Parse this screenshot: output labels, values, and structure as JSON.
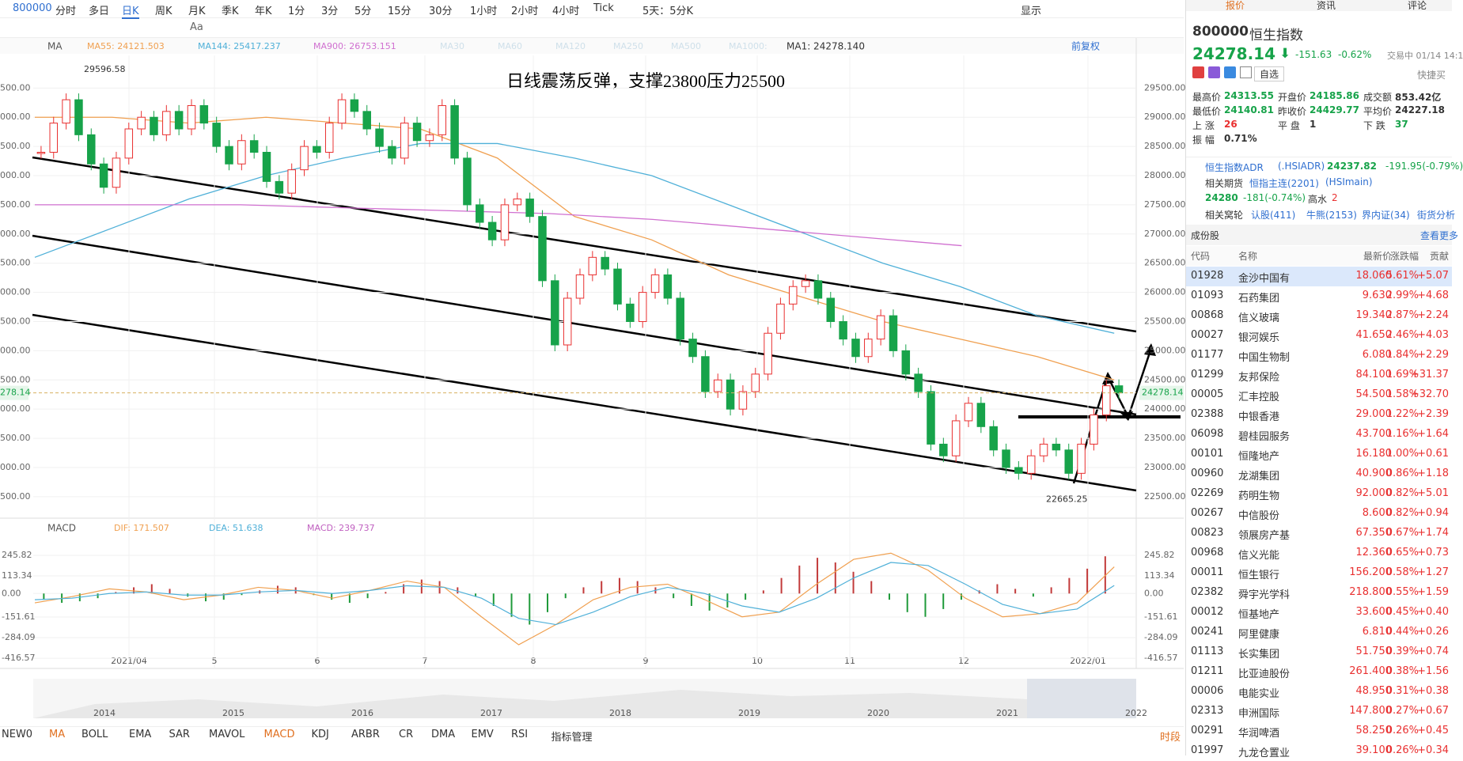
{
  "toolbar": {
    "code": "800000",
    "periods": [
      "分时",
      "多日",
      "日K",
      "周K",
      "月K",
      "季K",
      "年K",
      "1分",
      "3分",
      "5分",
      "15分",
      "30分",
      "1小时",
      "2小时",
      "4小时",
      "Tick",
      "5天：5分K"
    ],
    "active_index": 2,
    "display": "显示",
    "text_tool": "Aa"
  },
  "chart_data": [
    {
      "type": "candlestick",
      "indicator": "MA",
      "adjust": "前复权",
      "legend_extra": [
        "MA30",
        "MA60",
        "MA120",
        "MA250",
        "MA500",
        "MA1000:"
      ],
      "ma1": "MA1: 24278.140",
      "values": [
        28400,
        28900,
        29300,
        28700,
        28200,
        27800,
        28300,
        28800,
        29000,
        28700,
        29100,
        28800,
        29200,
        28900,
        28500,
        28200,
        28600,
        28400,
        27900,
        27700,
        28100,
        28500,
        28400,
        28900,
        29300,
        29100,
        28800,
        28500,
        28300,
        28900,
        28600,
        28700,
        29200,
        28300,
        27500,
        27200,
        26900,
        27500,
        27600,
        27300,
        26200,
        25100,
        25900,
        26300,
        26600,
        26400,
        25800,
        25500,
        26000,
        26300,
        25900,
        25200,
        24900,
        24300,
        24500,
        24000,
        24300,
        24600,
        25300,
        25800,
        26100,
        26200,
        25900,
        25500,
        25200,
        24900,
        25200,
        25600,
        25000,
        24600,
        24300,
        23400,
        23200,
        23800,
        24100,
        23700,
        23300,
        23000,
        22900,
        23200,
        23400,
        23300,
        22900,
        23400,
        23900,
        24400,
        24278.14
      ],
      "up_color": "#e93030",
      "down_color": "#17a34a",
      "series": [
        {
          "name": "MA55: 24121.503",
          "color": "#f0a050",
          "values": [
            29000,
            29000,
            28900,
            29000,
            28900,
            28800,
            28300,
            27300,
            26900,
            26300,
            25900,
            25500,
            25200,
            24900,
            24500
          ]
        },
        {
          "name": "MA144: 25417.237",
          "color": "#4fb0d8",
          "values": [
            26600,
            27100,
            27600,
            28000,
            28300,
            28550,
            28550,
            28300,
            28000,
            27500,
            27000,
            26500,
            26100,
            25600,
            25300
          ]
        },
        {
          "name": "MA900: 26753.151",
          "color": "#d070d0",
          "values": [
            27500,
            27500,
            27500,
            27450,
            27400,
            27350,
            27250,
            27100,
            26950,
            26800
          ]
        }
      ],
      "ylim": [
        22200,
        30060
      ],
      "yticks": [
        {
          "value": 22500,
          "label": "22500.00"
        },
        {
          "value": 23000,
          "label": "23000.00"
        },
        {
          "value": 23500,
          "label": "23500.00"
        },
        {
          "value": 24000,
          "label": "24000.00"
        },
        {
          "value": 24500,
          "label": "24500.00"
        },
        {
          "value": 25000,
          "label": "25000.00"
        },
        {
          "value": 25500,
          "label": "25500.00"
        },
        {
          "value": 26000,
          "label": "26000.00"
        },
        {
          "value": 26500,
          "label": "26500.00"
        },
        {
          "value": 27000,
          "label": "27000.00"
        },
        {
          "value": 27500,
          "label": "27500.00"
        },
        {
          "value": 28000,
          "label": "28000.00"
        },
        {
          "value": 28500,
          "label": "28500.00"
        },
        {
          "value": 29000,
          "label": "29000.00"
        },
        {
          "value": 29500,
          "label": "29500.00"
        }
      ],
      "current": 24278.14,
      "high": 29596.58,
      "low": 22665.25,
      "annotation": "日线震荡反弹，支撑23800压力25500",
      "x_labels": [
        "2021/04",
        "5",
        "6",
        "7",
        "8",
        "9",
        "10",
        "11",
        "12",
        "2022/01"
      ]
    },
    {
      "type": "bar",
      "indicator": "MACD",
      "legend": "MACD: 239.737",
      "legend_color": "#c060c0",
      "values": [
        -40,
        -60,
        -50,
        -30,
        10,
        40,
        60,
        30,
        -20,
        -50,
        -40,
        -10,
        20,
        50,
        40,
        -10,
        -40,
        -60,
        -30,
        10,
        60,
        90,
        80,
        40,
        -20,
        -80,
        -150,
        -200,
        -120,
        -30,
        40,
        80,
        100,
        80,
        40,
        -30,
        -80,
        -110,
        -90,
        -40,
        20,
        100,
        180,
        230,
        200,
        140,
        80,
        -40,
        -120,
        -150,
        -100,
        -40,
        20,
        60,
        30,
        -20,
        40,
        100,
        160,
        239.737
      ],
      "up_color": "#c23a3a",
      "down_color": "#1f9a3a",
      "series": [
        {
          "name": "DIF: 171.507",
          "color": "#f0a050",
          "values": [
            -60,
            -20,
            30,
            10,
            -40,
            -10,
            40,
            20,
            -30,
            20,
            80,
            40,
            -150,
            -330,
            -200,
            -40,
            40,
            60,
            -40,
            -150,
            -120,
            60,
            220,
            260,
            150,
            -30,
            -150,
            -130,
            -60,
            171.507
          ]
        },
        {
          "name": "DEA: 51.638",
          "color": "#4fb0d8",
          "values": [
            -40,
            -30,
            0,
            10,
            -10,
            -10,
            10,
            20,
            0,
            20,
            50,
            40,
            -30,
            -160,
            -200,
            -120,
            -20,
            40,
            0,
            -80,
            -120,
            -30,
            100,
            200,
            180,
            60,
            -70,
            -130,
            -100,
            51.638
          ]
        }
      ],
      "ylim": [
        -457,
        358
      ],
      "yticks": [
        245.82,
        113.34,
        {
          "value": 0,
          "label": "0.00"
        },
        -151.61,
        -284.09,
        -416.57
      ]
    }
  ],
  "overview_years": [
    "2014",
    "2015",
    "2016",
    "2017",
    "2018",
    "2019",
    "2020",
    "2021",
    "2022"
  ],
  "indicator_tabs": [
    "NEW0",
    "MA",
    "BOLL",
    "EMA",
    "SAR",
    "MAVOL",
    "MACD",
    "KDJ",
    "ARBR",
    "CR",
    "DMA",
    "EMV",
    "RSI",
    "指标管理"
  ],
  "indicator_active": [
    1,
    6
  ],
  "period_button": "时段",
  "panel": {
    "tabs": [
      "报价",
      "资讯",
      "评论"
    ],
    "code": "800000",
    "name": "恒生指数",
    "price": "24278.14",
    "change": "-151.63",
    "pct": "-0.62%",
    "status": "交易中 01/14 14:1",
    "watch": "自选",
    "quick": "快捷买",
    "stats": [
      [
        "最高价",
        "24313.55",
        "开盘价",
        "24185.86",
        "成交额",
        "853.42亿"
      ],
      [
        "最低价",
        "24140.81",
        "昨收价",
        "24429.77",
        "平均价",
        "24227.18"
      ],
      [
        "上  涨",
        "26",
        "平  盘",
        "1",
        "下  跌",
        "37"
      ],
      [
        "振  幅",
        "0.71%"
      ]
    ],
    "adr": {
      "name": "恒生指数ADR",
      "code": "(.HSIADR)",
      "price": "24237.82",
      "change": "-191.95(-0.79%)"
    },
    "futures": {
      "label": "相关期货",
      "name": "恒指主连(2201)",
      "code": "(HSImain)",
      "price": "24280",
      "change": "-181(-0.74%)",
      "premium_label": "高水",
      "premium": "2"
    },
    "warrants": {
      "label": "相关窝轮",
      "items": [
        "认股(411)",
        "牛熊(2153)",
        "界内证(34)",
        "街货分析"
      ]
    },
    "constituents": "成份股",
    "more": "查看更多",
    "columns": [
      "代码",
      "名称",
      "最新价",
      "涨跌幅",
      "贡献"
    ],
    "rows": [
      [
        "01928",
        "金沙中国有",
        "18.060",
        "5.61%",
        "+5.07"
      ],
      [
        "01093",
        "石药集团",
        "9.630",
        "2.99%",
        "+4.68"
      ],
      [
        "00868",
        "信义玻璃",
        "19.340",
        "2.87%",
        "+2.24"
      ],
      [
        "00027",
        "银河娱乐",
        "41.650",
        "2.46%",
        "+4.03"
      ],
      [
        "01177",
        "中国生物制",
        "6.080",
        "1.84%",
        "+2.29"
      ],
      [
        "01299",
        "友邦保险",
        "84.100",
        "1.69%",
        "+31.37"
      ],
      [
        "00005",
        "汇丰控股",
        "54.500",
        "1.58%",
        "+32.70"
      ],
      [
        "02388",
        "中银香港",
        "29.000",
        "1.22%",
        "+2.39"
      ],
      [
        "06098",
        "碧桂园服务",
        "43.700",
        "1.16%",
        "+1.64"
      ],
      [
        "00101",
        "恒隆地产",
        "16.180",
        "1.00%",
        "+0.61"
      ],
      [
        "00960",
        "龙湖集团",
        "40.900",
        "0.86%",
        "+1.18"
      ],
      [
        "02269",
        "药明生物",
        "92.000",
        "0.82%",
        "+5.01"
      ],
      [
        "00267",
        "中信股份",
        "8.600",
        "0.82%",
        "+0.94"
      ],
      [
        "00823",
        "领展房产基",
        "67.350",
        "0.67%",
        "+1.74"
      ],
      [
        "00968",
        "信义光能",
        "12.360",
        "0.65%",
        "+0.73"
      ],
      [
        "00011",
        "恒生银行",
        "156.200",
        "0.58%",
        "+1.27"
      ],
      [
        "02382",
        "舜宇光学科",
        "218.800",
        "0.55%",
        "+1.59"
      ],
      [
        "00012",
        "恒基地产",
        "33.600",
        "0.45%",
        "+0.40"
      ],
      [
        "00241",
        "阿里健康",
        "6.810",
        "0.44%",
        "+0.26"
      ],
      [
        "01113",
        "长实集团",
        "51.750",
        "0.39%",
        "+0.74"
      ],
      [
        "01211",
        "比亚迪股份",
        "261.400",
        "0.38%",
        "+1.56"
      ],
      [
        "00006",
        "电能实业",
        "48.950",
        "0.31%",
        "+0.38"
      ],
      [
        "02313",
        "申洲国际",
        "147.800",
        "0.27%",
        "+0.67"
      ],
      [
        "00291",
        "华润啤酒",
        "58.250",
        "0.26%",
        "+0.45"
      ],
      [
        "01997",
        "九龙仓置业",
        "39.100",
        "0.26%",
        "+0.34"
      ]
    ]
  }
}
